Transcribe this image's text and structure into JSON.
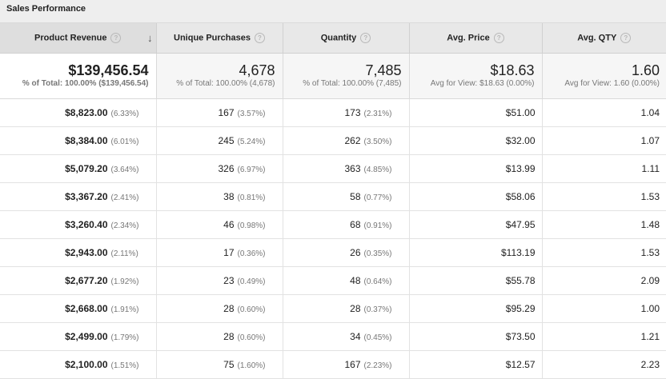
{
  "section_title": "Sales Performance",
  "columns": [
    {
      "label": "Product Revenue",
      "help": "?",
      "sort": "↓"
    },
    {
      "label": "Unique Purchases",
      "help": "?"
    },
    {
      "label": "Quantity",
      "help": "?"
    },
    {
      "label": "Avg. Price",
      "help": "?"
    },
    {
      "label": "Avg. QTY",
      "help": "?"
    }
  ],
  "totals": [
    {
      "value": "$139,456.54",
      "sub": "% of Total: 100.00% ($139,456.54)"
    },
    {
      "value": "4,678",
      "sub": "% of Total: 100.00% (4,678)"
    },
    {
      "value": "7,485",
      "sub": "% of Total: 100.00% (7,485)"
    },
    {
      "value": "$18.63",
      "sub": "Avg for View: $18.63 (0.00%)"
    },
    {
      "value": "1.60",
      "sub": "Avg for View: 1.60 (0.00%)"
    }
  ],
  "rows": [
    {
      "revenue": "$8,823.00",
      "revenue_pct": "(6.33%)",
      "unique": "167",
      "unique_pct": "(3.57%)",
      "qty": "173",
      "qty_pct": "(2.31%)",
      "avg_price": "$51.00",
      "avg_qty": "1.04"
    },
    {
      "revenue": "$8,384.00",
      "revenue_pct": "(6.01%)",
      "unique": "245",
      "unique_pct": "(5.24%)",
      "qty": "262",
      "qty_pct": "(3.50%)",
      "avg_price": "$32.00",
      "avg_qty": "1.07"
    },
    {
      "revenue": "$5,079.20",
      "revenue_pct": "(3.64%)",
      "unique": "326",
      "unique_pct": "(6.97%)",
      "qty": "363",
      "qty_pct": "(4.85%)",
      "avg_price": "$13.99",
      "avg_qty": "1.11"
    },
    {
      "revenue": "$3,367.20",
      "revenue_pct": "(2.41%)",
      "unique": "38",
      "unique_pct": "(0.81%)",
      "qty": "58",
      "qty_pct": "(0.77%)",
      "avg_price": "$58.06",
      "avg_qty": "1.53"
    },
    {
      "revenue": "$3,260.40",
      "revenue_pct": "(2.34%)",
      "unique": "46",
      "unique_pct": "(0.98%)",
      "qty": "68",
      "qty_pct": "(0.91%)",
      "avg_price": "$47.95",
      "avg_qty": "1.48"
    },
    {
      "revenue": "$2,943.00",
      "revenue_pct": "(2.11%)",
      "unique": "17",
      "unique_pct": "(0.36%)",
      "qty": "26",
      "qty_pct": "(0.35%)",
      "avg_price": "$113.19",
      "avg_qty": "1.53"
    },
    {
      "revenue": "$2,677.20",
      "revenue_pct": "(1.92%)",
      "unique": "23",
      "unique_pct": "(0.49%)",
      "qty": "48",
      "qty_pct": "(0.64%)",
      "avg_price": "$55.78",
      "avg_qty": "2.09"
    },
    {
      "revenue": "$2,668.00",
      "revenue_pct": "(1.91%)",
      "unique": "28",
      "unique_pct": "(0.60%)",
      "qty": "28",
      "qty_pct": "(0.37%)",
      "avg_price": "$95.29",
      "avg_qty": "1.00"
    },
    {
      "revenue": "$2,499.00",
      "revenue_pct": "(1.79%)",
      "unique": "28",
      "unique_pct": "(0.60%)",
      "qty": "34",
      "qty_pct": "(0.45%)",
      "avg_price": "$73.50",
      "avg_qty": "1.21"
    },
    {
      "revenue": "$2,100.00",
      "revenue_pct": "(1.51%)",
      "unique": "75",
      "unique_pct": "(1.60%)",
      "qty": "167",
      "qty_pct": "(2.23%)",
      "avg_price": "$12.57",
      "avg_qty": "2.23"
    }
  ]
}
